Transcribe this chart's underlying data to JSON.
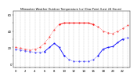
{
  "title": "Milwaukee Weather Outdoor Temperature (vs) Dew Point (Last 24 Hours)",
  "temp_x": [
    0,
    1,
    2,
    3,
    4,
    5,
    6,
    7,
    8,
    9,
    10,
    11,
    12,
    13,
    14,
    15,
    16,
    17,
    18,
    19,
    20,
    21,
    22,
    23
  ],
  "temp_y": [
    20,
    19,
    18,
    17,
    18,
    20,
    25,
    33,
    42,
    48,
    50,
    50,
    50,
    50,
    50,
    50,
    48,
    45,
    40,
    38,
    37,
    40,
    43,
    47
  ],
  "dew_x": [
    0,
    1,
    2,
    3,
    4,
    5,
    6,
    7,
    8,
    9,
    10,
    11,
    12,
    13,
    14,
    15,
    16,
    17,
    18,
    19,
    20,
    21,
    22,
    23
  ],
  "dew_y": [
    18,
    17,
    16,
    15,
    14,
    14,
    15,
    20,
    25,
    20,
    10,
    5,
    3,
    3,
    3,
    3,
    5,
    10,
    18,
    20,
    21,
    26,
    30,
    32
  ],
  "temp_color": "#ff0000",
  "dew_color": "#0000ff",
  "bg_color": "#ffffff",
  "ylim": [
    -5,
    65
  ],
  "xlim": [
    -0.5,
    23.5
  ],
  "grid_color": "#888888",
  "ytick_vals": [
    0,
    10,
    20,
    30,
    40,
    50,
    60
  ],
  "ytick_labels": [
    "0",
    "",
    "20",
    "",
    "40",
    "",
    "60"
  ],
  "xtick_vals": [
    0,
    1,
    2,
    3,
    4,
    5,
    6,
    7,
    8,
    9,
    10,
    11,
    12,
    13,
    14,
    15,
    16,
    17,
    18,
    19,
    20,
    21,
    22,
    23
  ],
  "xlabel_fontsize": 2.8,
  "ylabel_fontsize": 2.8,
  "title_fontsize": 2.5,
  "marker_size": 0.8,
  "linewidth_solid": 0.6,
  "linewidth_dotted": 0.4,
  "temp_solid_start": 9,
  "temp_solid_end": 16,
  "dew_solid1_start": 6,
  "dew_solid1_end": 10,
  "dew_solid2_start": 17,
  "dew_solid2_end": 22
}
